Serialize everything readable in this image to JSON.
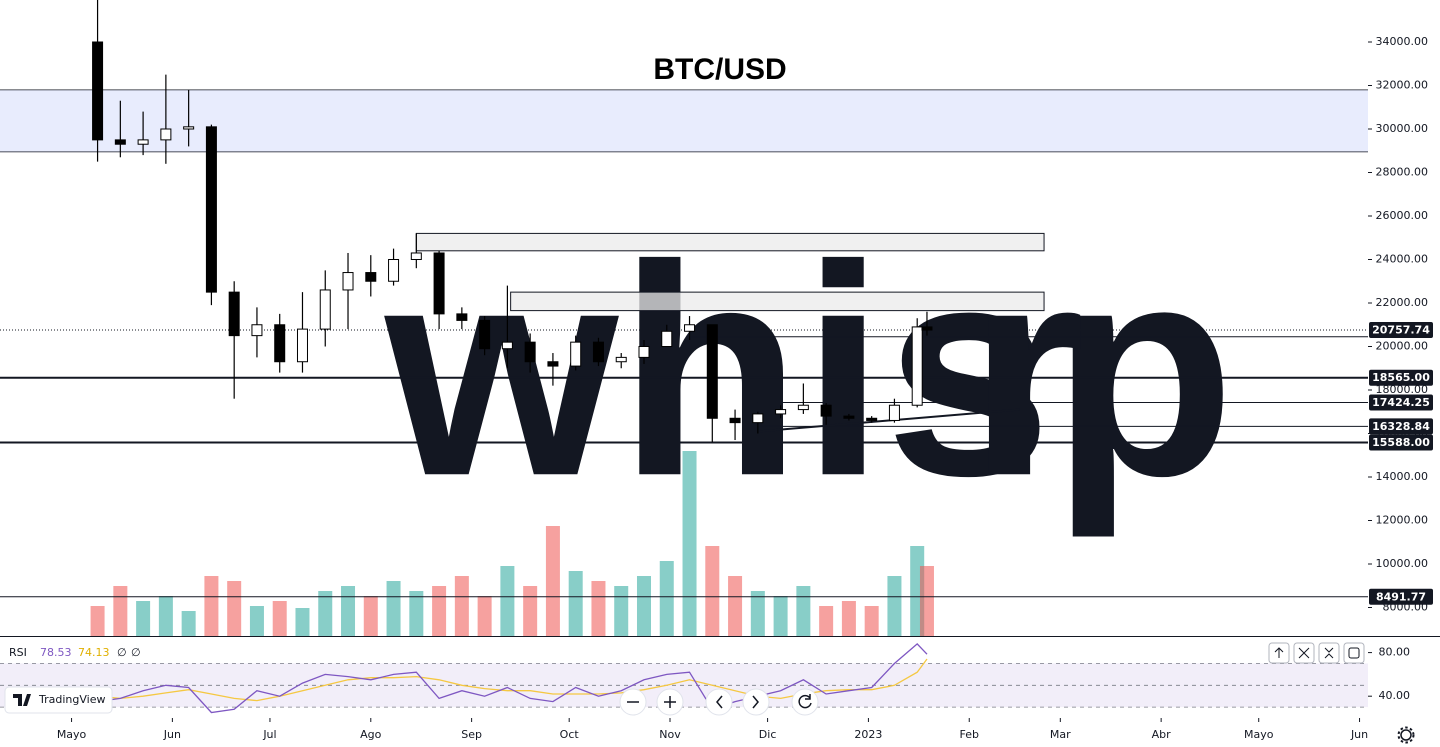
{
  "chart_data": {
    "type": "candlestick",
    "title": "BTC/USD",
    "watermark": [
      "whisp",
      "r"
    ],
    "x": [
      30,
      37,
      44,
      51,
      58,
      65,
      72,
      79,
      86,
      93,
      100,
      107,
      114,
      121,
      128,
      135,
      142,
      149,
      156,
      163,
      170,
      177,
      184,
      191,
      198,
      205,
      212,
      219,
      226,
      233,
      240,
      247,
      254,
      261,
      268,
      275,
      282,
      285
    ],
    "open": [
      34000,
      29500,
      29300,
      29500,
      30000,
      30100,
      22500,
      20500,
      21000,
      19300,
      20800,
      22600,
      23400,
      23000,
      24000,
      24300,
      21500,
      21200,
      19900,
      20200,
      19300,
      19100,
      20200,
      19300,
      19500,
      20000,
      20700,
      21000,
      16700,
      16500,
      16900,
      17100,
      17300,
      16800,
      16700,
      16600,
      17300,
      20900
    ],
    "high": [
      36000,
      31300,
      30800,
      32500,
      31800,
      30200,
      23000,
      21800,
      21500,
      22500,
      23500,
      24300,
      24200,
      24500,
      25200,
      24400,
      21800,
      21400,
      22800,
      20600,
      19700,
      20500,
      20400,
      19700,
      20300,
      21000,
      21400,
      21000,
      17100,
      17000,
      17300,
      18300,
      17400,
      16900,
      16800,
      17600,
      21300,
      21600
    ],
    "low": [
      28500,
      28700,
      28800,
      28400,
      29200,
      21900,
      17600,
      19500,
      18800,
      18800,
      20000,
      20800,
      22300,
      22800,
      23600,
      20800,
      20800,
      19600,
      19000,
      18800,
      18200,
      18900,
      19100,
      19000,
      19200,
      20000,
      20300,
      15600,
      15700,
      16000,
      16700,
      16900,
      16400,
      16600,
      16500,
      16500,
      17200,
      20500
    ],
    "close": [
      29500,
      29300,
      29500,
      30000,
      30100,
      22500,
      20500,
      21000,
      19300,
      20800,
      22600,
      23400,
      23000,
      24000,
      24300,
      21500,
      21200,
      19900,
      20200,
      19300,
      19100,
      20200,
      19300,
      19500,
      20000,
      20700,
      21000,
      16700,
      16500,
      16900,
      17100,
      17300,
      16800,
      16700,
      16600,
      17300,
      20900,
      20757.74
    ],
    "up_color": "#ffffff",
    "down_color": "#000000",
    "xlim": [
      0,
      420.6
    ],
    "xticks": [
      {
        "value": 22,
        "label": "Mayo"
      },
      {
        "value": 53,
        "label": "Jun"
      },
      {
        "value": 83,
        "label": "Jul"
      },
      {
        "value": 114,
        "label": "Ago"
      },
      {
        "value": 145,
        "label": "Sep"
      },
      {
        "value": 175,
        "label": "Oct"
      },
      {
        "value": 206,
        "label": "Nov"
      },
      {
        "value": 236,
        "label": "Dic"
      },
      {
        "value": 267,
        "label": "2023"
      },
      {
        "value": 298,
        "label": "Feb"
      },
      {
        "value": 326,
        "label": "Mar"
      },
      {
        "value": 357,
        "label": "Abr"
      },
      {
        "value": 387,
        "label": "Mayo"
      },
      {
        "value": 418,
        "label": "Jun"
      }
    ],
    "ylim": [
      6690,
      35931
    ],
    "yticks": [
      {
        "value": 34000,
        "label": "34000.00"
      },
      {
        "value": 32000,
        "label": "32000.00"
      },
      {
        "value": 30000,
        "label": "30000.00"
      },
      {
        "value": 28000,
        "label": "28000.00"
      },
      {
        "value": 26000,
        "label": "26000.00"
      },
      {
        "value": 24000,
        "label": "24000.00"
      },
      {
        "value": 22000,
        "label": "22000.00"
      },
      {
        "value": 20000,
        "label": "20000.00"
      },
      {
        "value": 18000,
        "label": "18000.00"
      },
      {
        "value": 16000,
        "label": "16000.00"
      },
      {
        "value": 14000,
        "label": "14000.00"
      },
      {
        "value": 12000,
        "label": "12000.00"
      },
      {
        "value": 10000,
        "label": "10000.00"
      },
      {
        "value": 8000,
        "label": "8000.00"
      }
    ],
    "zones": [
      {
        "y": [
          28950,
          31800
        ],
        "color": "#e8ecfd"
      }
    ],
    "boxes": [
      {
        "x": [
          128,
          321
        ],
        "y": [
          24400,
          25200
        ]
      },
      {
        "x": [
          157,
          321
        ],
        "y": [
          21650,
          22500
        ]
      }
    ],
    "levels": [
      {
        "value": 20757.74,
        "from": 0,
        "style": "dotted"
      },
      {
        "value": 20450,
        "from": 212,
        "style": "thin"
      },
      {
        "value": 18565,
        "label": "18565.00",
        "from": 0,
        "style": "thick"
      },
      {
        "value": 17424.25,
        "from": 233,
        "style": "thin"
      },
      {
        "value": 16328.84,
        "from": 233,
        "style": "thin"
      },
      {
        "value": 15588,
        "label": "15588.00",
        "from": 0,
        "style": "thick"
      },
      {
        "value": 8491.77,
        "from": 0,
        "style": "thin"
      }
    ],
    "trendline": {
      "x": [
        233.6,
        313.5
      ],
      "y": [
        16100,
        17100
      ]
    },
    "volume": {
      "values": [
        30,
        50,
        35,
        40,
        25,
        60,
        55,
        30,
        35,
        28,
        45,
        50,
        40,
        55,
        45,
        50,
        60,
        40,
        70,
        50,
        110,
        65,
        55,
        50,
        60,
        75,
        185,
        90,
        60,
        45,
        40,
        50,
        30,
        35,
        30,
        60,
        90,
        70
      ],
      "ylim": [
        0,
        200
      ]
    },
    "rsi": {
      "label": "RSI",
      "values": [
        35,
        38,
        45,
        50,
        48,
        25,
        28,
        45,
        40,
        52,
        60,
        58,
        55,
        60,
        62,
        38,
        45,
        40,
        48,
        38,
        35,
        48,
        40,
        45,
        55,
        60,
        62,
        28,
        35,
        40,
        45,
        55,
        42,
        45,
        48,
        70,
        88,
        78.53
      ],
      "ma_values": [
        40,
        38,
        40,
        43,
        46,
        42,
        38,
        36,
        40,
        45,
        50,
        55,
        57,
        57,
        58,
        55,
        50,
        47,
        45,
        45,
        42,
        42,
        42,
        43,
        46,
        50,
        55,
        50,
        45,
        40,
        38,
        42,
        45,
        46,
        46,
        50,
        62,
        74.13
      ],
      "color": "#7e57c2",
      "ma_color": "#f5c842",
      "extra": [
        "∅",
        "∅"
      ],
      "ylim": [
        20,
        94.3
      ],
      "yticks": [
        {
          "value": 80,
          "label": "80.00"
        },
        {
          "value": 40,
          "label": "40.00"
        }
      ],
      "bands": [
        30,
        50,
        70
      ]
    },
    "brand": "TradingView"
  }
}
